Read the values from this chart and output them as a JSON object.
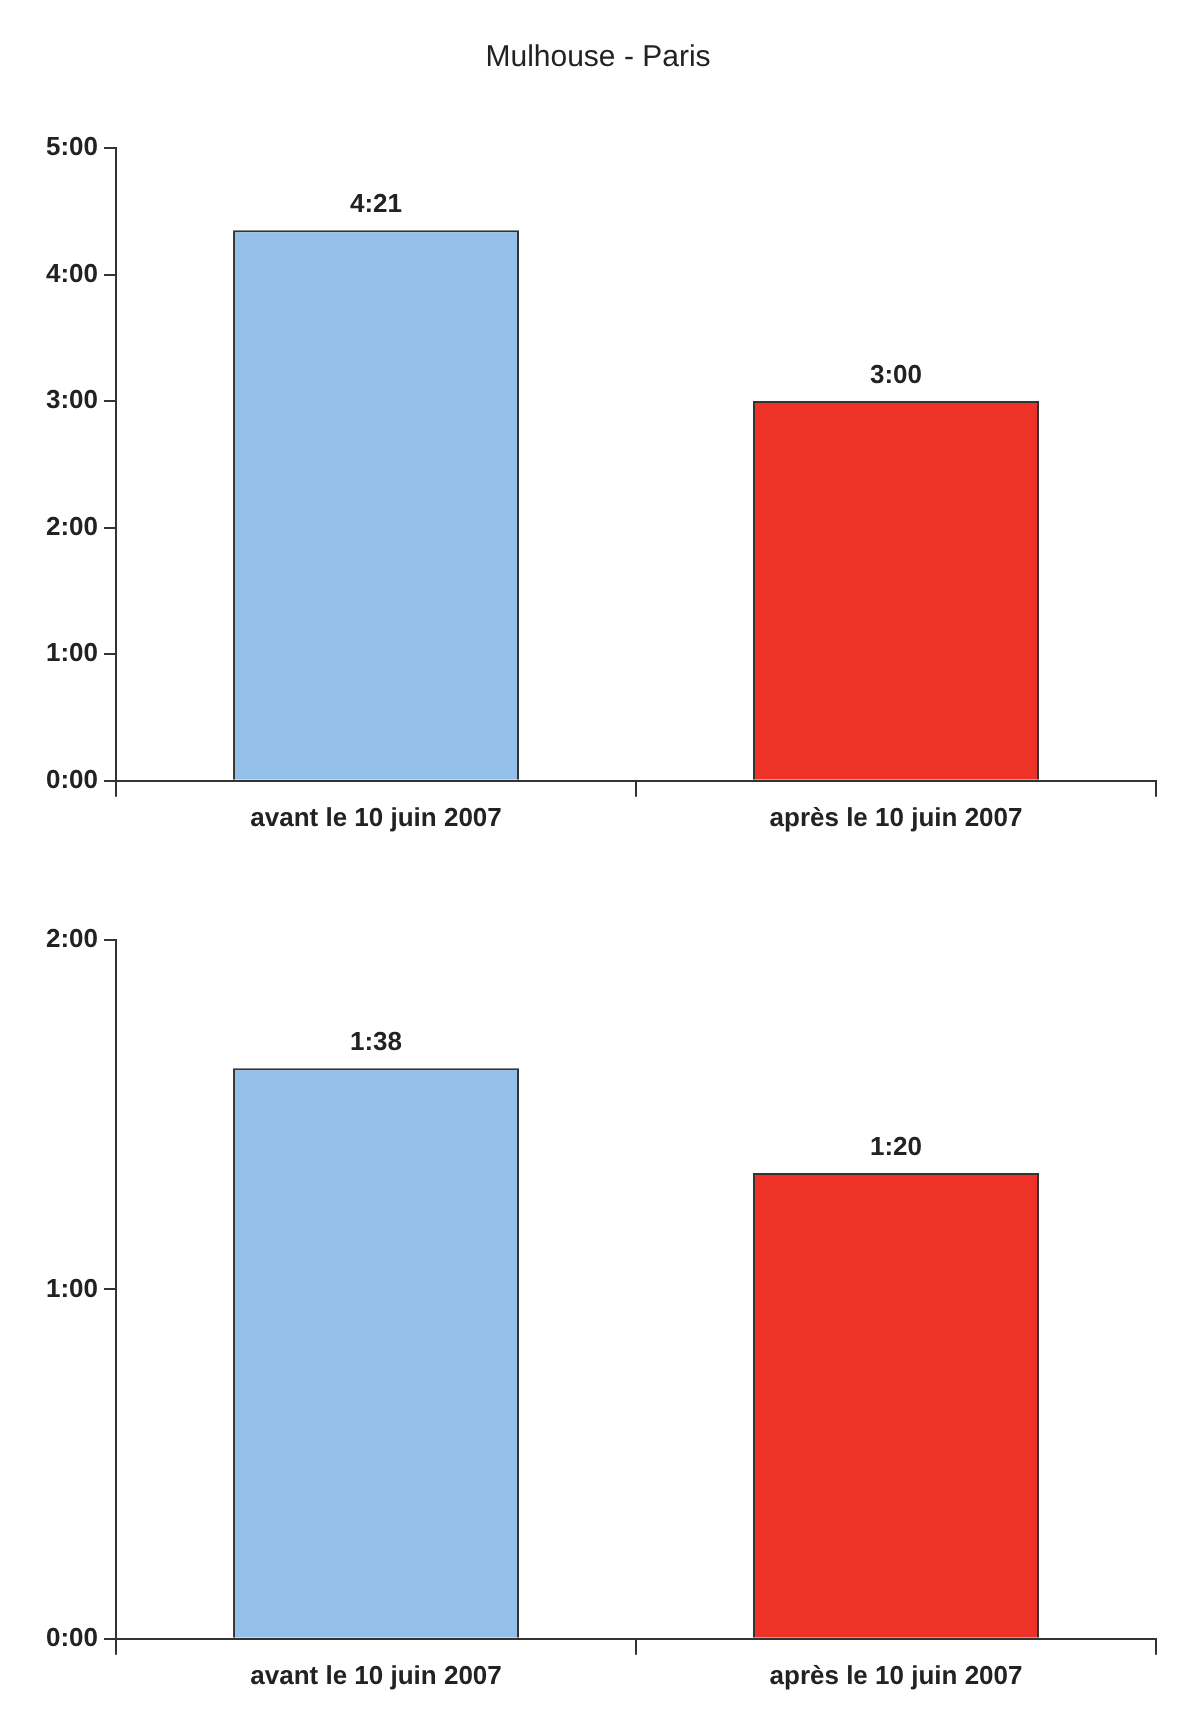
{
  "chart_data": [
    {
      "type": "bar",
      "title": "Mulhouse - Paris",
      "categories": [
        "avant le 10 juin 2007",
        "après le 10 juin 2007"
      ],
      "values": [
        4.35,
        3
      ],
      "colors": [
        "#93bfe8",
        "#ee3228"
      ],
      "value_labels": [
        "4:21",
        "3:00"
      ],
      "ylim": [
        0,
        5
      ],
      "yticks": [
        {
          "value": 0,
          "label": "0:00"
        },
        {
          "value": 1,
          "label": "1:00"
        },
        {
          "value": 2,
          "label": "2:00"
        },
        {
          "value": 3,
          "label": "3:00"
        },
        {
          "value": 4,
          "label": "4:00"
        },
        {
          "value": 5,
          "label": "5:00"
        }
      ],
      "grid": false,
      "legend": false
    },
    {
      "type": "bar",
      "categories": [
        "avant le 10 juin 2007",
        "après le 10 juin 2007"
      ],
      "values": [
        1.6333,
        1.3333
      ],
      "colors": [
        "#93bfe8",
        "#ee3228"
      ],
      "value_labels": [
        "1:38",
        "1:20"
      ],
      "ylim": [
        0,
        2
      ],
      "yticks": [
        {
          "value": 0,
          "label": "0:00"
        },
        {
          "value": 1,
          "label": "1:00"
        },
        {
          "value": 2,
          "label": "2:00"
        }
      ],
      "grid": false,
      "legend": false
    }
  ]
}
